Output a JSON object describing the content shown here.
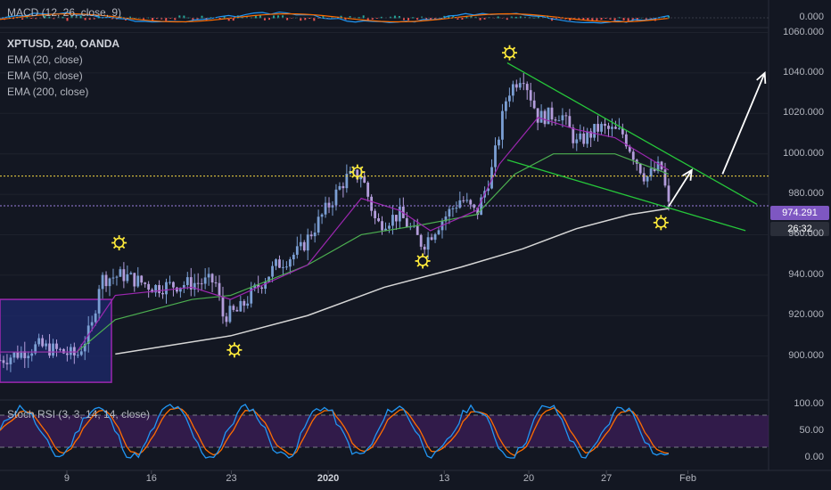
{
  "header": {
    "macd_title": "MACD (12, 26, close, 9)",
    "symbol": "XPTUSD, 240, OANDA",
    "ema20": "EMA (20, close)",
    "ema50": "EMA (50, close)",
    "ema200": "EMA (200, close)",
    "stoch_title": "Stoch RSI (3, 3, 14, 14, close)"
  },
  "price_badge": {
    "value": "974.291",
    "timer": "26:32"
  },
  "colors": {
    "background": "#131722",
    "candle": "#7b9fd4",
    "candle_alt": "#b39ddb",
    "ema20": "#9c27b0",
    "ema50": "#4caf50",
    "ema200": "#d6d6d6",
    "wedge": "#26c63a",
    "dotted_line": "#f5d742",
    "current_price_line": "#9b7fe0",
    "rsi_k": "#2196f3",
    "rsi_d": "#ff6d00",
    "rsi_band": "#4a1f6b",
    "box": "#9c27b0",
    "sun_marker": "#ffeb3b"
  },
  "chart_data": [
    {
      "type": "line",
      "title": "MACD (12, 26, close, 9)",
      "y_labels": [
        "0.000"
      ],
      "ylim": [
        -3,
        3
      ]
    },
    {
      "type": "candlestick",
      "title": "XPTUSD, 240, OANDA",
      "ylim": [
        880,
        1062
      ],
      "y_labels": [
        "1060.000",
        "1040.000",
        "1020.000",
        "1000.000",
        "980.000",
        "960.000",
        "940.000",
        "920.000",
        "900.000"
      ],
      "y_values": [
        1060,
        1040,
        1020,
        1000,
        980,
        960,
        940,
        920,
        900
      ],
      "x_labels": [
        "9",
        "16",
        "23",
        "2020",
        "13",
        "20",
        "27",
        "Feb"
      ],
      "close_path": [
        [
          0,
          898
        ],
        [
          0.05,
          905
        ],
        [
          0.1,
          900
        ],
        [
          0.12,
          915
        ],
        [
          0.13,
          938
        ],
        [
          0.16,
          940
        ],
        [
          0.2,
          934
        ],
        [
          0.25,
          936
        ],
        [
          0.28,
          937
        ],
        [
          0.29,
          920
        ],
        [
          0.31,
          922
        ],
        [
          0.33,
          932
        ],
        [
          0.36,
          945
        ],
        [
          0.39,
          952
        ],
        [
          0.42,
          970
        ],
        [
          0.45,
          988
        ],
        [
          0.47,
          990
        ],
        [
          0.49,
          965
        ],
        [
          0.52,
          970
        ],
        [
          0.55,
          955
        ],
        [
          0.57,
          965
        ],
        [
          0.6,
          978
        ],
        [
          0.62,
          970
        ],
        [
          0.64,
          992
        ],
        [
          0.66,
          1030
        ],
        [
          0.68,
          1040
        ],
        [
          0.7,
          1018
        ],
        [
          0.73,
          1020
        ],
        [
          0.75,
          1005
        ],
        [
          0.78,
          1013
        ],
        [
          0.81,
          1010
        ],
        [
          0.84,
          988
        ],
        [
          0.86,
          994
        ],
        [
          0.87,
          974
        ]
      ],
      "ema20_path": [
        [
          0,
          902
        ],
        [
          0.1,
          902
        ],
        [
          0.15,
          930
        ],
        [
          0.25,
          934
        ],
        [
          0.3,
          928
        ],
        [
          0.4,
          945
        ],
        [
          0.47,
          978
        ],
        [
          0.52,
          972
        ],
        [
          0.56,
          962
        ],
        [
          0.62,
          972
        ],
        [
          0.65,
          995
        ],
        [
          0.7,
          1018
        ],
        [
          0.75,
          1012
        ],
        [
          0.8,
          1008
        ],
        [
          0.87,
          992
        ]
      ],
      "ema50_path": [
        [
          0,
          902
        ],
        [
          0.1,
          902
        ],
        [
          0.15,
          918
        ],
        [
          0.25,
          928
        ],
        [
          0.3,
          930
        ],
        [
          0.4,
          945
        ],
        [
          0.47,
          960
        ],
        [
          0.55,
          965
        ],
        [
          0.62,
          970
        ],
        [
          0.67,
          990
        ],
        [
          0.72,
          1000
        ],
        [
          0.8,
          1000
        ],
        [
          0.87,
          990
        ]
      ],
      "ema200_path": [
        [
          0.15,
          901
        ],
        [
          0.3,
          910
        ],
        [
          0.4,
          920
        ],
        [
          0.5,
          934
        ],
        [
          0.6,
          944
        ],
        [
          0.68,
          953
        ],
        [
          0.75,
          963
        ],
        [
          0.82,
          970
        ],
        [
          0.87,
          973
        ]
      ],
      "annotations": {
        "sun_markers": [
          [
            0.155,
            956
          ],
          [
            0.305,
            903
          ],
          [
            0.465,
            991
          ],
          [
            0.55,
            947
          ],
          [
            0.663,
            1050
          ],
          [
            0.86,
            966
          ]
        ],
        "dotted_level": 989,
        "current_price": 974.291,
        "wedge_upper": [
          [
            0.66,
            1045
          ],
          [
            0.985,
            975
          ]
        ],
        "wedge_lower": [
          [
            0.66,
            997
          ],
          [
            0.97,
            962
          ]
        ],
        "arrow_small": [
          [
            0.87,
            974
          ],
          [
            0.9,
            992
          ]
        ],
        "arrow_big": [
          [
            0.94,
            990
          ],
          [
            0.995,
            1040
          ]
        ],
        "box": {
          "x0": 0,
          "x1": 0.145,
          "y0": 887,
          "y1": 928
        }
      }
    },
    {
      "type": "line",
      "title": "Stoch RSI (3, 3, 14, 14, close)",
      "ylim": [
        0,
        100
      ],
      "y_labels": [
        "100.00",
        "50.00",
        "0.00"
      ],
      "y_values": [
        100,
        50,
        0
      ],
      "bands": [
        20,
        80
      ]
    }
  ]
}
